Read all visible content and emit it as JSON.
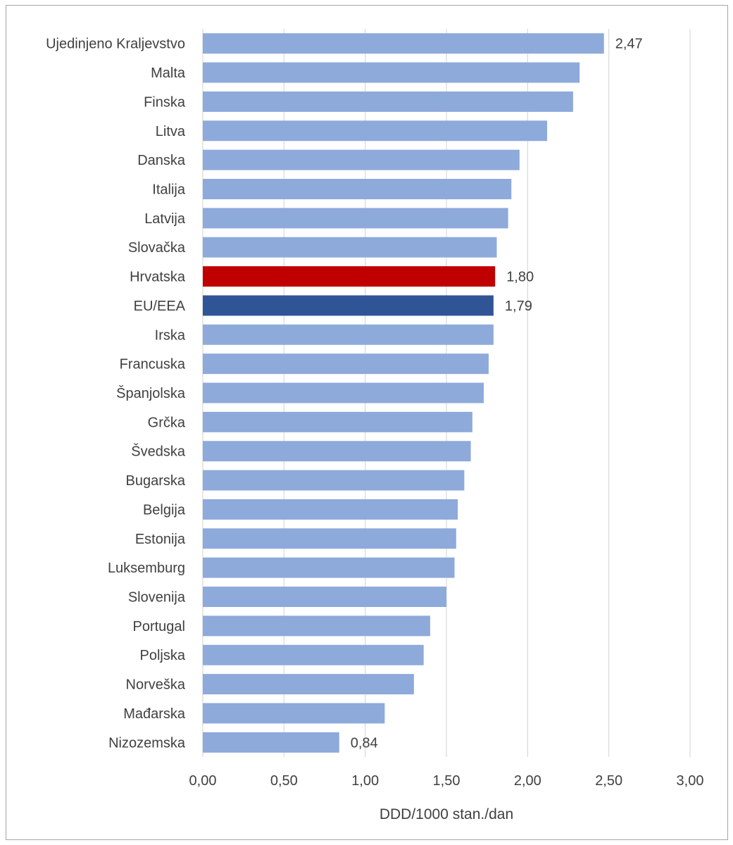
{
  "chart_data": {
    "type": "bar",
    "orientation": "horizontal",
    "title": "",
    "xlabel": "DDD/1000 stan./dan",
    "ylabel": "",
    "xlim": [
      0,
      3
    ],
    "ticks": [
      "0,00",
      "0,50",
      "1,00",
      "1,50",
      "2,00",
      "2,50",
      "3,00"
    ],
    "tick_values": [
      0,
      0.5,
      1,
      1.5,
      2,
      2.5,
      3
    ],
    "grid": true,
    "categories": [
      "Ujedinjeno Kraljevstvo",
      "Malta",
      "Finska",
      "Litva",
      "Danska",
      "Italija",
      "Latvija",
      "Slovačka",
      "Hrvatska",
      "EU/EEA",
      "Irska",
      "Francuska",
      "Španjolska",
      "Grčka",
      "Švedska",
      "Bugarska",
      "Belgija",
      "Estonija",
      "Luksemburg",
      "Slovenija",
      "Portugal",
      "Poljska",
      "Norveška",
      "Mađarska",
      "Nizozemska"
    ],
    "values": [
      2.47,
      2.32,
      2.28,
      2.12,
      1.95,
      1.9,
      1.88,
      1.81,
      1.8,
      1.79,
      1.79,
      1.76,
      1.73,
      1.66,
      1.65,
      1.61,
      1.57,
      1.56,
      1.55,
      1.5,
      1.4,
      1.36,
      1.3,
      1.12,
      0.84
    ],
    "data_labels": {
      "0": "2,47",
      "8": "1,80",
      "9": "1,79",
      "24": "0,84"
    },
    "colors": {
      "default": "#8eaadb",
      "Hrvatska": "#c00000",
      "EU/EEA": "#2f5597"
    },
    "gridline_color": "#d9d9d9"
  }
}
